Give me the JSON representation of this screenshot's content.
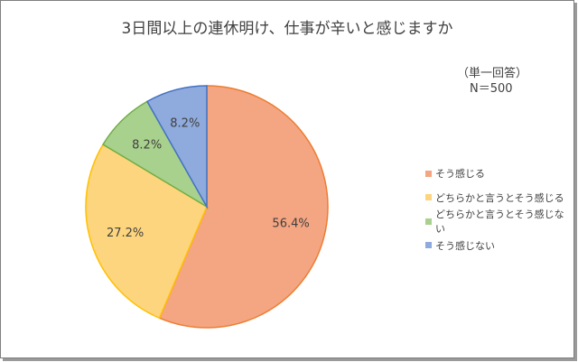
{
  "title": "3日間以上の連休明け、仕事が辛いと感じますか",
  "note": {
    "line1": "（単一回答）",
    "line2": "N＝500"
  },
  "chart_data": {
    "type": "pie",
    "title": "3日間以上の連休明け、仕事が辛いと感じますか",
    "categories": [
      "そう感じる",
      "どちらかと言うとそう感じる",
      "どちらかと言うとそう感じない",
      "そう感じない"
    ],
    "values": [
      56.4,
      27.2,
      8.2,
      8.2
    ],
    "labels": [
      "56.4%",
      "27.2%",
      "8.2%",
      "8.2%"
    ],
    "colors": [
      "#f4a582",
      "#fdd57e",
      "#a9d18e",
      "#8faadc"
    ],
    "edge_colors": [
      "#ed7d31",
      "#ffc000",
      "#70ad47",
      "#4472c4"
    ],
    "legend_position": "right"
  }
}
